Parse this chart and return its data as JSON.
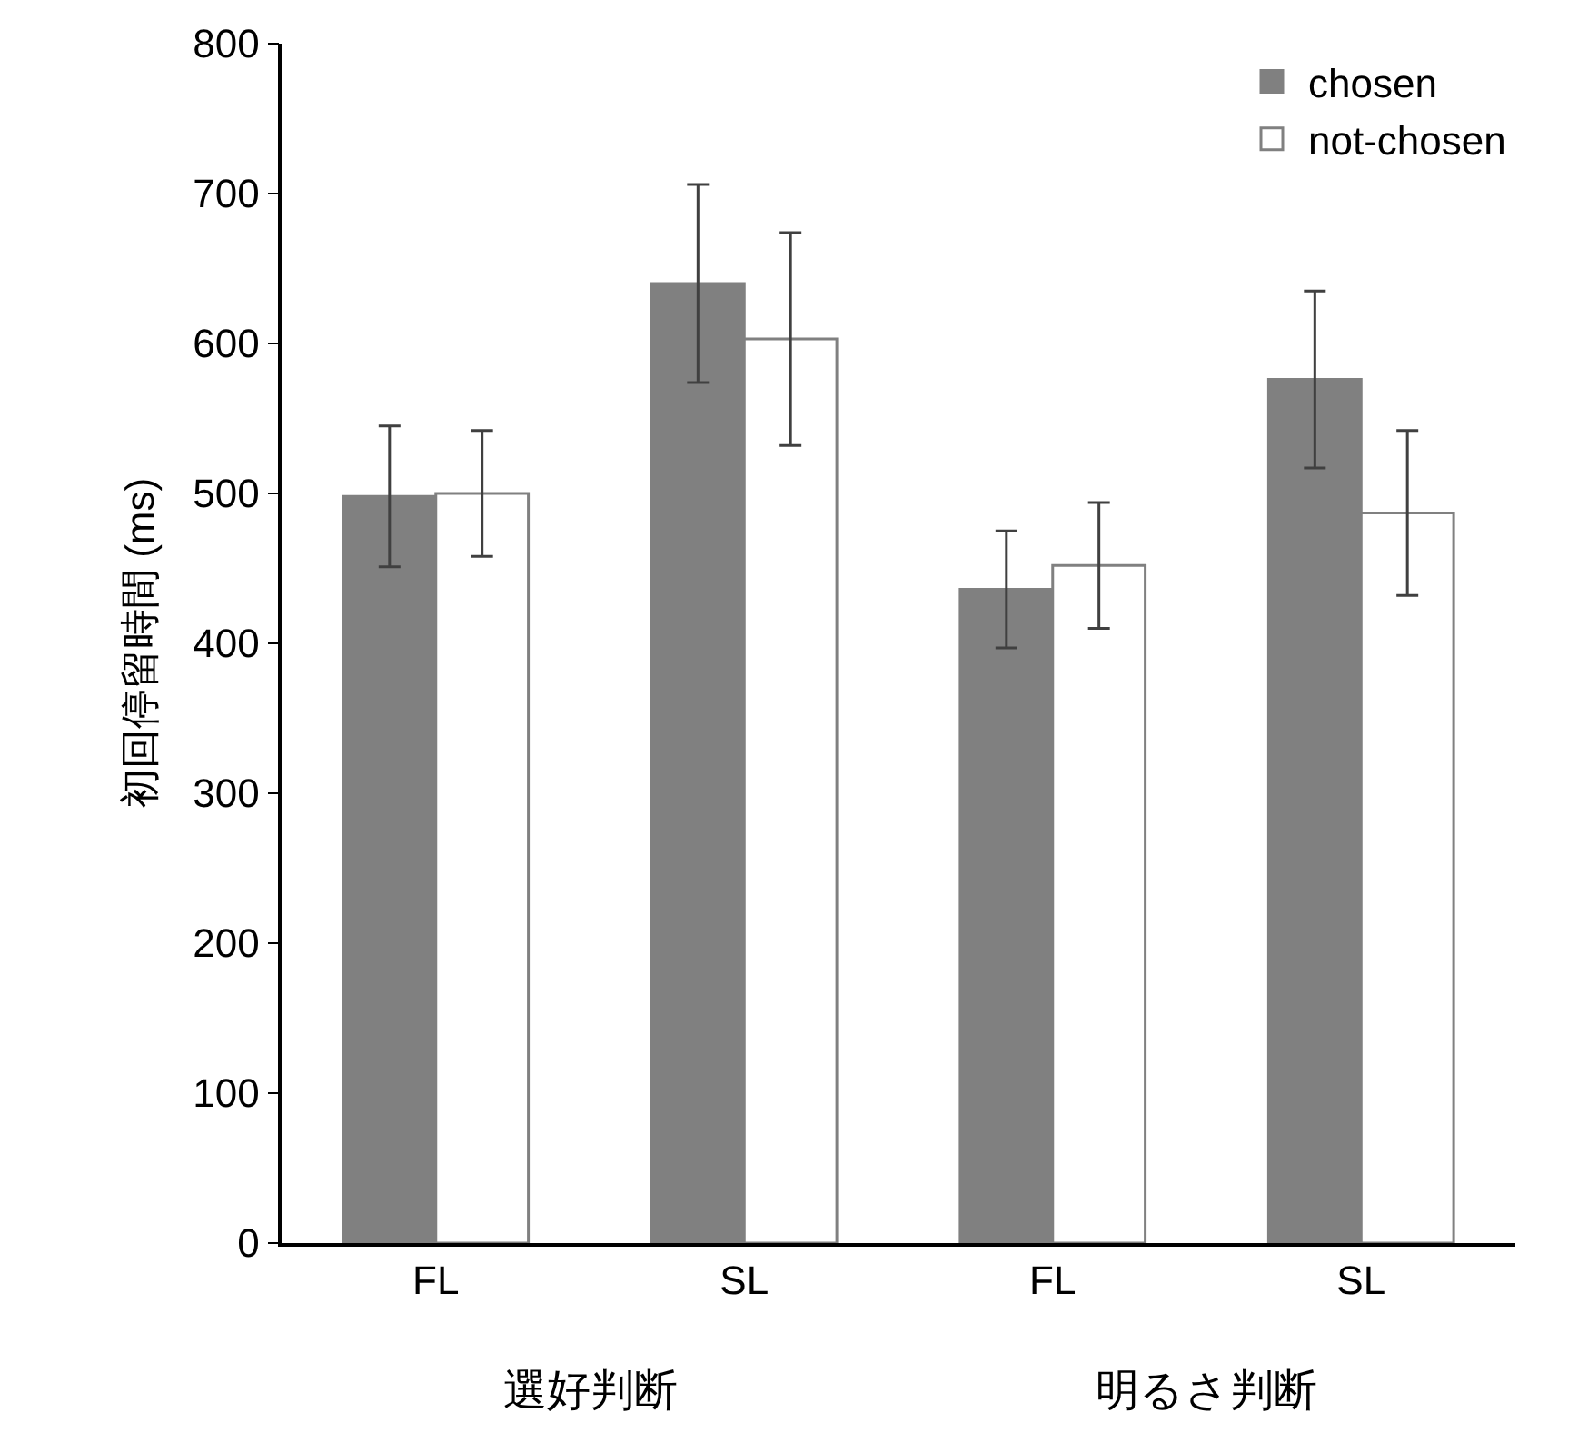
{
  "chart_data": {
    "type": "bar",
    "ylabel": "初回停留時間 (ms)",
    "categories": [
      "FL",
      "SL",
      "FL",
      "SL"
    ],
    "series": [
      {
        "name": "chosen",
        "color": "#808080",
        "values": [
          498,
          640,
          436,
          576
        ],
        "errors": [
          47,
          66,
          39,
          59
        ]
      },
      {
        "name": "not-chosen",
        "color": "#ffffff",
        "values": [
          500,
          603,
          452,
          487
        ],
        "errors": [
          42,
          71,
          42,
          55
        ]
      }
    ],
    "annotations": [
      "選好判断",
      "明るさ判断"
    ],
    "ylim": [
      0,
      800
    ],
    "yticks": [
      0,
      100,
      200,
      300,
      400,
      500,
      600,
      700,
      800
    ],
    "legend": "top right"
  }
}
